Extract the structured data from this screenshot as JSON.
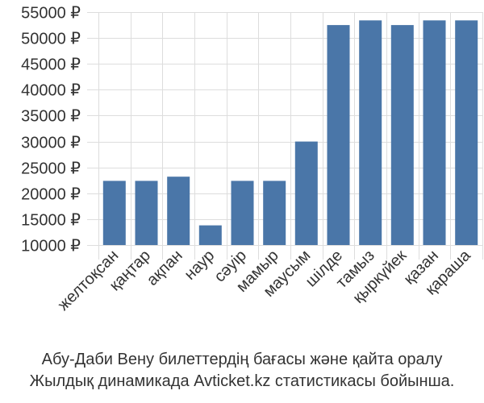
{
  "chart_data": {
    "type": "bar",
    "categories": [
      "желтоқсан",
      "қаңтар",
      "ақпан",
      "наур",
      "сәуір",
      "мамыр",
      "маусым",
      "шілде",
      "тамыз",
      "қыркүйек",
      "қазан",
      "қараша"
    ],
    "values": [
      22400,
      22400,
      23200,
      13800,
      22400,
      22400,
      30000,
      52500,
      53400,
      52500,
      53400,
      53400
    ],
    "ylim": [
      10000,
      55000
    ],
    "yticks": [
      10000,
      15000,
      20000,
      25000,
      30000,
      35000,
      40000,
      45000,
      50000,
      55000
    ],
    "ytick_labels": [
      "10000 ₽",
      "15000 ₽",
      "20000 ₽",
      "25000 ₽",
      "30000 ₽",
      "35000 ₽",
      "40000 ₽",
      "45000 ₽",
      "50000 ₽",
      "55000 ₽"
    ],
    "grid": true,
    "bar_color": "#4a76a8",
    "grid_color": "#dddddd"
  },
  "caption": {
    "line1": "Абу-Даби Вену билеттердің бағасы және қайта оралу",
    "line2": "Жылдық динамикада Avticket.kz статистикасы бойынша."
  }
}
